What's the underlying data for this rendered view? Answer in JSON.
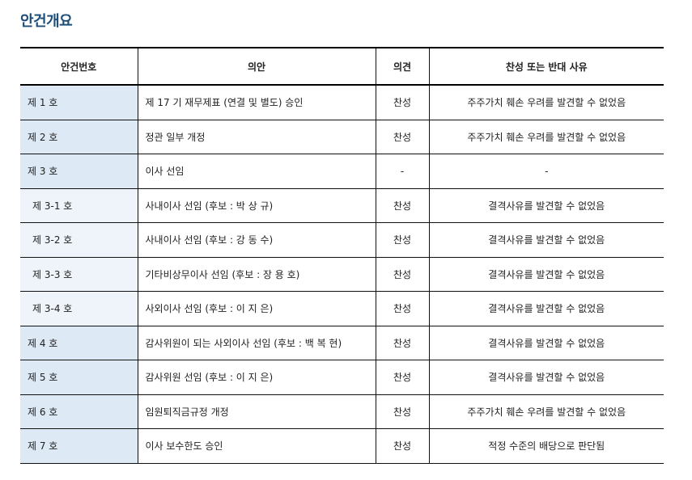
{
  "title": "안건개요",
  "headers": [
    "안건번호",
    "의안",
    "의견",
    "찬성 또는 반대 사유"
  ],
  "rows": [
    {
      "no": "제 1 호",
      "item": "제 17 기 재무제표 (연결 및 별도) 승인",
      "opinion": "찬성",
      "reason": "주주가치 훼손 우려를 발견할 수 없었음",
      "sub": false
    },
    {
      "no": "제 2 호",
      "item": "정관 일부 개정",
      "opinion": "찬성",
      "reason": "주주가치 훼손 우려를 발견할 수 없었음",
      "sub": false
    },
    {
      "no": "제 3 호",
      "item": "이사 선임",
      "opinion": "-",
      "reason": "-",
      "sub": false
    },
    {
      "no": "제 3-1 호",
      "item": "사내이사 선임 (후보 : 박 상 규)",
      "opinion": "찬성",
      "reason": "결격사유를 발견할 수 없었음",
      "sub": true
    },
    {
      "no": "제 3-2 호",
      "item": "사내이사 선임 (후보 : 강 동 수)",
      "opinion": "찬성",
      "reason": "결격사유를 발견할 수 없었음",
      "sub": true
    },
    {
      "no": "제 3-3 호",
      "item": "기타비상무이사 선임 (후보 : 장 용 호)",
      "opinion": "찬성",
      "reason": "결격사유를 발견할 수 없었음",
      "sub": true
    },
    {
      "no": "제 3-4 호",
      "item": "사외이사 선임 (후보 : 이 지 은)",
      "opinion": "찬성",
      "reason": "결격사유를 발견할 수 없었음",
      "sub": true
    },
    {
      "no": "제 4 호",
      "item": "감사위원이 되는 사외이사 선임 (후보 : 백 복 현)",
      "opinion": "찬성",
      "reason": "결격사유를 발견할 수 없었음",
      "sub": false
    },
    {
      "no": "제 5 호",
      "item": "감사위원 선임 (후보 : 이 지 은)",
      "opinion": "찬성",
      "reason": "결격사유를 발견할 수 없었음",
      "sub": false
    },
    {
      "no": "제 6 호",
      "item": "임원퇴직금규정 개정",
      "opinion": "찬성",
      "reason": "주주가치 훼손 우려를 발견할 수 없었음",
      "sub": false
    },
    {
      "no": "제 7 호",
      "item": "이사 보수한도 승인",
      "opinion": "찬성",
      "reason": "적정 수준의 배당으로 판단됨",
      "sub": false
    }
  ]
}
